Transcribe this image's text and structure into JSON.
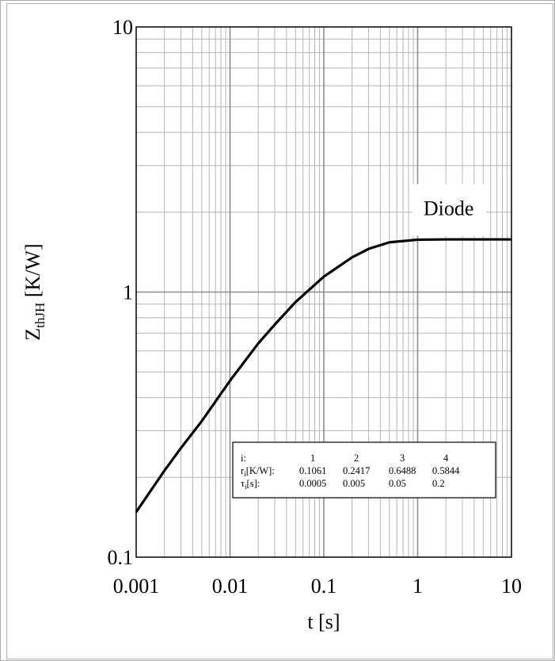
{
  "chart_data": {
    "type": "line",
    "xlabel": "t [s]",
    "ylabel": {
      "main": "Z",
      "sub": "thJH",
      "unit": " [K/W]"
    },
    "x_scale": "log",
    "y_scale": "log",
    "xlim": [
      0.001,
      10
    ],
    "ylim": [
      0.1,
      10
    ],
    "x_ticks": [
      "0.001",
      "0.01",
      "0.1",
      "1",
      "10"
    ],
    "y_ticks": [
      "0.1",
      "1",
      "10"
    ],
    "grid": true,
    "series": [
      {
        "name": "Diode",
        "x": [
          0.001,
          0.002,
          0.003,
          0.005,
          0.01,
          0.02,
          0.03,
          0.05,
          0.1,
          0.2,
          0.3,
          0.5,
          1,
          2,
          5,
          10
        ],
        "y": [
          0.148,
          0.212,
          0.258,
          0.326,
          0.463,
          0.64,
          0.754,
          0.917,
          1.143,
          1.352,
          1.455,
          1.54,
          1.576,
          1.58,
          1.58,
          1.58
        ]
      }
    ],
    "legend_table": {
      "header_label": "i:",
      "columns": [
        "1",
        "2",
        "3",
        "4"
      ],
      "rows": [
        {
          "label_main": "r",
          "label_sub": "i",
          "label_rest": "[K/W]:",
          "values": [
            "0.1061",
            "0.2417",
            "0.6488",
            "0.5844"
          ]
        },
        {
          "label_main": "τ",
          "label_sub": "i",
          "label_rest": "[s]:",
          "values": [
            "0.0005",
            "0.005",
            "0.05",
            "0.2"
          ]
        }
      ],
      "placement": "bottom-right"
    },
    "colors": {
      "line": "#000000",
      "major_grid": "#8c8c8c",
      "minor_grid": "#b4b4b4"
    }
  }
}
